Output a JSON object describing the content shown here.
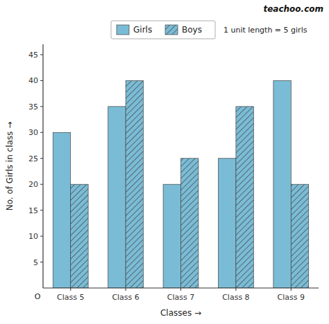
{
  "chart_data": {
    "type": "bar",
    "title": "teachoo.com",
    "categories": [
      "Class 5",
      "Class 6",
      "Class 7",
      "Class 8",
      "Class 9"
    ],
    "series": [
      {
        "name": "Girls",
        "color": "#7abcd6",
        "values": [
          30,
          35,
          20,
          25,
          40
        ]
      },
      {
        "name": "Boys",
        "color": "#7abcd6",
        "values": [
          20,
          40,
          25,
          35,
          20
        ]
      }
    ],
    "xlabel": "Classes →",
    "ylabel": "No. of Girls in class →",
    "annotations": [
      "1 unit length = 5 girls",
      "O"
    ],
    "ylim": [
      0,
      47
    ],
    "yticks": [
      5,
      10,
      15,
      20,
      25,
      30,
      35,
      40,
      45
    ],
    "grid": false,
    "legend": "top"
  }
}
